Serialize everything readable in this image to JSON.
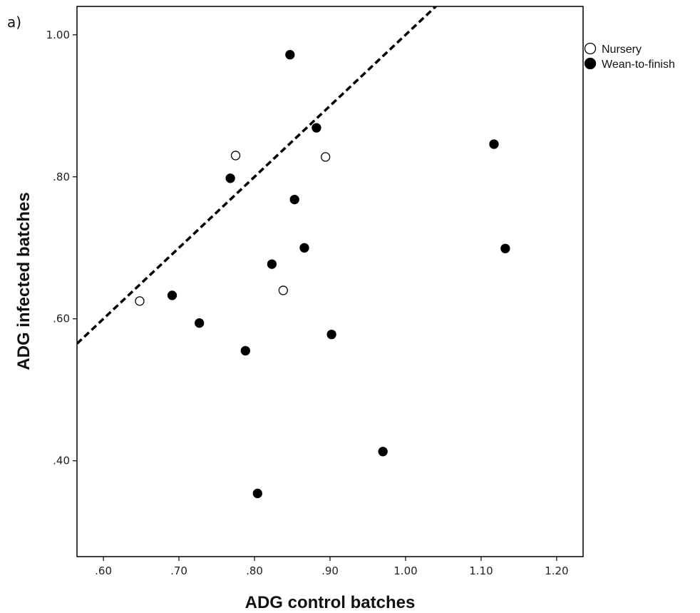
{
  "panel_label": "a)",
  "chart_data": {
    "type": "scatter",
    "xlabel": "ADG control batches",
    "ylabel": "ADG infected batches",
    "xlim": [
      0.565,
      1.235
    ],
    "ylim": [
      0.265,
      1.04
    ],
    "x_ticks": [
      0.6,
      0.7,
      0.8,
      0.9,
      1.0,
      1.1,
      1.2
    ],
    "x_tick_labels": [
      ".60",
      ".70",
      ".80",
      ".90",
      "1.00",
      "1.10",
      "1.20"
    ],
    "y_ticks": [
      0.4,
      0.6,
      0.8,
      1.0
    ],
    "y_tick_labels": [
      ".40",
      ".60",
      ".80",
      "1.00"
    ],
    "grid": false,
    "legend_position": "top-right-outside",
    "reference_line": {
      "style": "dashed",
      "description": "y = x",
      "slope": 1,
      "intercept": 0
    },
    "series": [
      {
        "name": "Nursery",
        "marker": "open-circle",
        "x": [
          0.648,
          0.775,
          0.838,
          0.894
        ],
        "y": [
          0.625,
          0.83,
          0.64,
          0.828
        ]
      },
      {
        "name": "Wean-to-finish",
        "marker": "filled-circle",
        "x": [
          0.691,
          0.727,
          0.768,
          0.788,
          0.804,
          0.823,
          0.847,
          0.853,
          0.866,
          0.882,
          0.902,
          0.97,
          1.117,
          1.132
        ],
        "y": [
          0.633,
          0.594,
          0.798,
          0.555,
          0.354,
          0.677,
          0.972,
          0.768,
          0.7,
          0.869,
          0.578,
          0.413,
          0.846,
          0.699
        ]
      }
    ],
    "colors": {
      "marker_fill": "#000000",
      "marker_open_fill": "#ffffff",
      "line": "#000000"
    }
  }
}
